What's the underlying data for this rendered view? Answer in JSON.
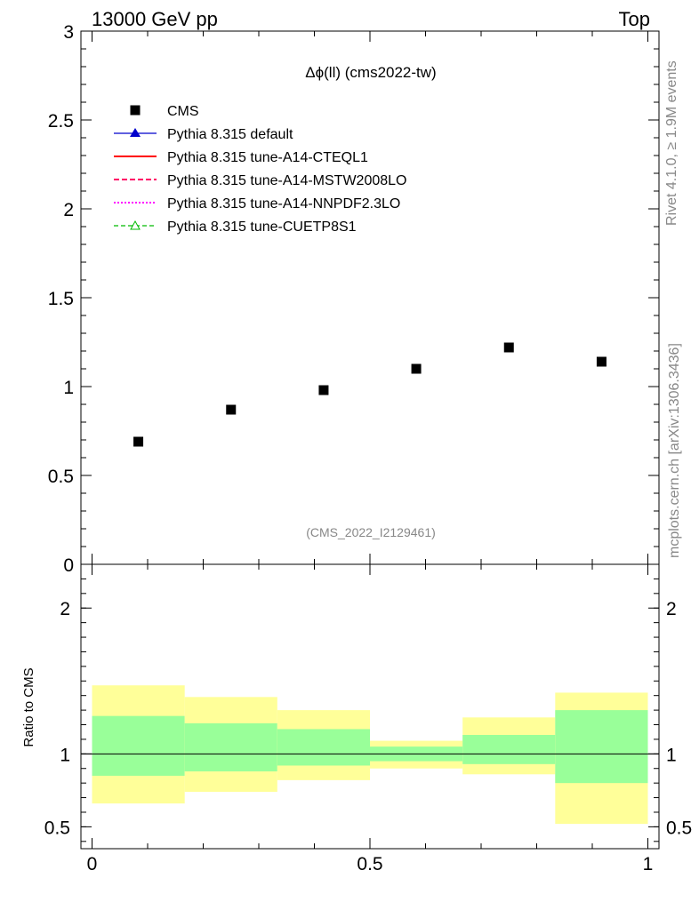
{
  "header": {
    "left": "13000 GeV pp",
    "right": "Top"
  },
  "side_labels": {
    "rivet": "Rivet 4.1.0, ≥ 1.9M events",
    "mcplots": "mcplots.cern.ch [arXiv:1306.3436]"
  },
  "colors": {
    "data": "#000000",
    "default": "#0000cc",
    "cteql1": "#ff0000",
    "mstw": "#ff0066",
    "nnpdf": "#ff00ff",
    "cuetp": "#00bb00",
    "band_outer": "#ffff99",
    "band_inner": "#99ff99",
    "watermark": "#888888"
  },
  "chart_data": [
    {
      "type": "scatter",
      "title": "Δϕ(ll) (cms2022-tw)",
      "watermark": "(CMS_2022_I2129461)",
      "xlabel": "",
      "ylabel": "",
      "xlim": [
        -0.02,
        1.02
      ],
      "ylim": [
        0,
        3
      ],
      "y_ticks": [
        0,
        0.5,
        1,
        1.5,
        2,
        2.5,
        3
      ],
      "y_tick_labels": [
        "0",
        "0.5",
        "1",
        "1.5",
        "2",
        "2.5",
        "3"
      ],
      "legend_position": "top-left",
      "legend": [
        {
          "label": "CMS",
          "style": "data"
        },
        {
          "label": "Pythia 8.315 default",
          "style": "default"
        },
        {
          "label": "Pythia 8.315 tune-A14-CTEQL1",
          "style": "cteql1"
        },
        {
          "label": "Pythia 8.315 tune-A14-MSTW2008LO",
          "style": "mstw"
        },
        {
          "label": "Pythia 8.315 tune-A14-NNPDF2.3LO",
          "style": "nnpdf"
        },
        {
          "label": "Pythia 8.315 tune-CUETP8S1",
          "style": "cuetp"
        }
      ],
      "series": [
        {
          "name": "CMS",
          "x": [
            0.0833,
            0.25,
            0.4167,
            0.5833,
            0.75,
            0.9167
          ],
          "y": [
            0.69,
            0.87,
            0.98,
            1.1,
            1.22,
            1.14
          ]
        }
      ]
    },
    {
      "type": "area",
      "title": "",
      "ylabel": "Ratio to CMS",
      "xlabel": "",
      "xlim": [
        -0.02,
        1.02
      ],
      "ylim": [
        0.35,
        2.3
      ],
      "x_ticks": [
        0,
        0.5,
        1
      ],
      "x_tick_labels": [
        "0",
        "0.5",
        "1"
      ],
      "y_ticks": [
        0.5,
        1,
        2
      ],
      "y_tick_labels": [
        "0.5",
        "1",
        "2"
      ],
      "bins": [
        {
          "lo": 0.0,
          "hi": 0.1667,
          "inner": [
            0.85,
            1.26
          ],
          "outer": [
            0.66,
            1.47
          ]
        },
        {
          "lo": 0.1667,
          "hi": 0.3333,
          "inner": [
            0.88,
            1.21
          ],
          "outer": [
            0.74,
            1.39
          ]
        },
        {
          "lo": 0.3333,
          "hi": 0.5,
          "inner": [
            0.92,
            1.17
          ],
          "outer": [
            0.82,
            1.3
          ]
        },
        {
          "lo": 0.5,
          "hi": 0.6667,
          "inner": [
            0.95,
            1.05
          ],
          "outer": [
            0.9,
            1.09
          ]
        },
        {
          "lo": 0.6667,
          "hi": 0.8333,
          "inner": [
            0.93,
            1.13
          ],
          "outer": [
            0.86,
            1.25
          ]
        },
        {
          "lo": 0.8333,
          "hi": 1.0,
          "inner": [
            0.8,
            1.3
          ],
          "outer": [
            0.52,
            1.42
          ]
        }
      ],
      "reference_line": 1
    }
  ]
}
